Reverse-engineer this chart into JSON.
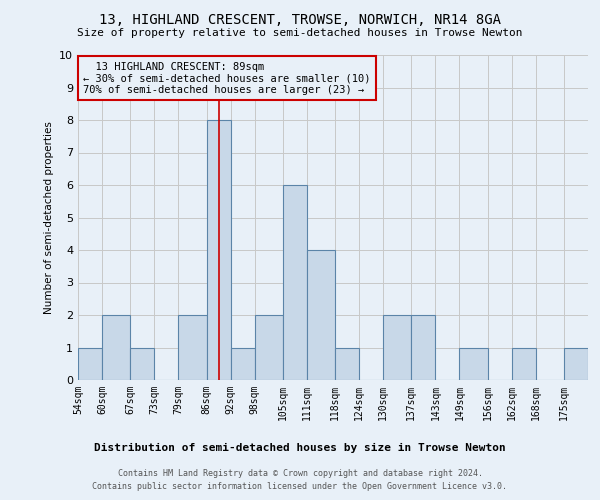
{
  "title": "13, HIGHLAND CRESCENT, TROWSE, NORWICH, NR14 8GA",
  "subtitle": "Size of property relative to semi-detached houses in Trowse Newton",
  "xlabel": "Distribution of semi-detached houses by size in Trowse Newton",
  "ylabel": "Number of semi-detached properties",
  "footer1": "Contains HM Land Registry data © Crown copyright and database right 2024.",
  "footer2": "Contains public sector information licensed under the Open Government Licence v3.0.",
  "annotation_line1": "13 HIGHLAND CRESCENT: 89sqm",
  "annotation_line2": "← 30% of semi-detached houses are smaller (10)",
  "annotation_line3": "70% of semi-detached houses are larger (23) →",
  "property_line_x": 89,
  "bar_edges": [
    54,
    60,
    67,
    73,
    79,
    86,
    92,
    98,
    105,
    111,
    118,
    124,
    130,
    137,
    143,
    149,
    156,
    162,
    168,
    175,
    181
  ],
  "bar_heights": [
    1,
    2,
    1,
    0,
    2,
    8,
    1,
    2,
    6,
    4,
    1,
    0,
    2,
    2,
    0,
    1,
    0,
    1,
    0,
    1
  ],
  "bar_color": "#c8d8e8",
  "bar_edge_color": "#5b84a8",
  "property_line_color": "#cc0000",
  "grid_color": "#c8c8c8",
  "ylim": [
    0,
    10
  ],
  "yticks": [
    0,
    1,
    2,
    3,
    4,
    5,
    6,
    7,
    8,
    9,
    10
  ],
  "bg_color": "#e8f0f8"
}
